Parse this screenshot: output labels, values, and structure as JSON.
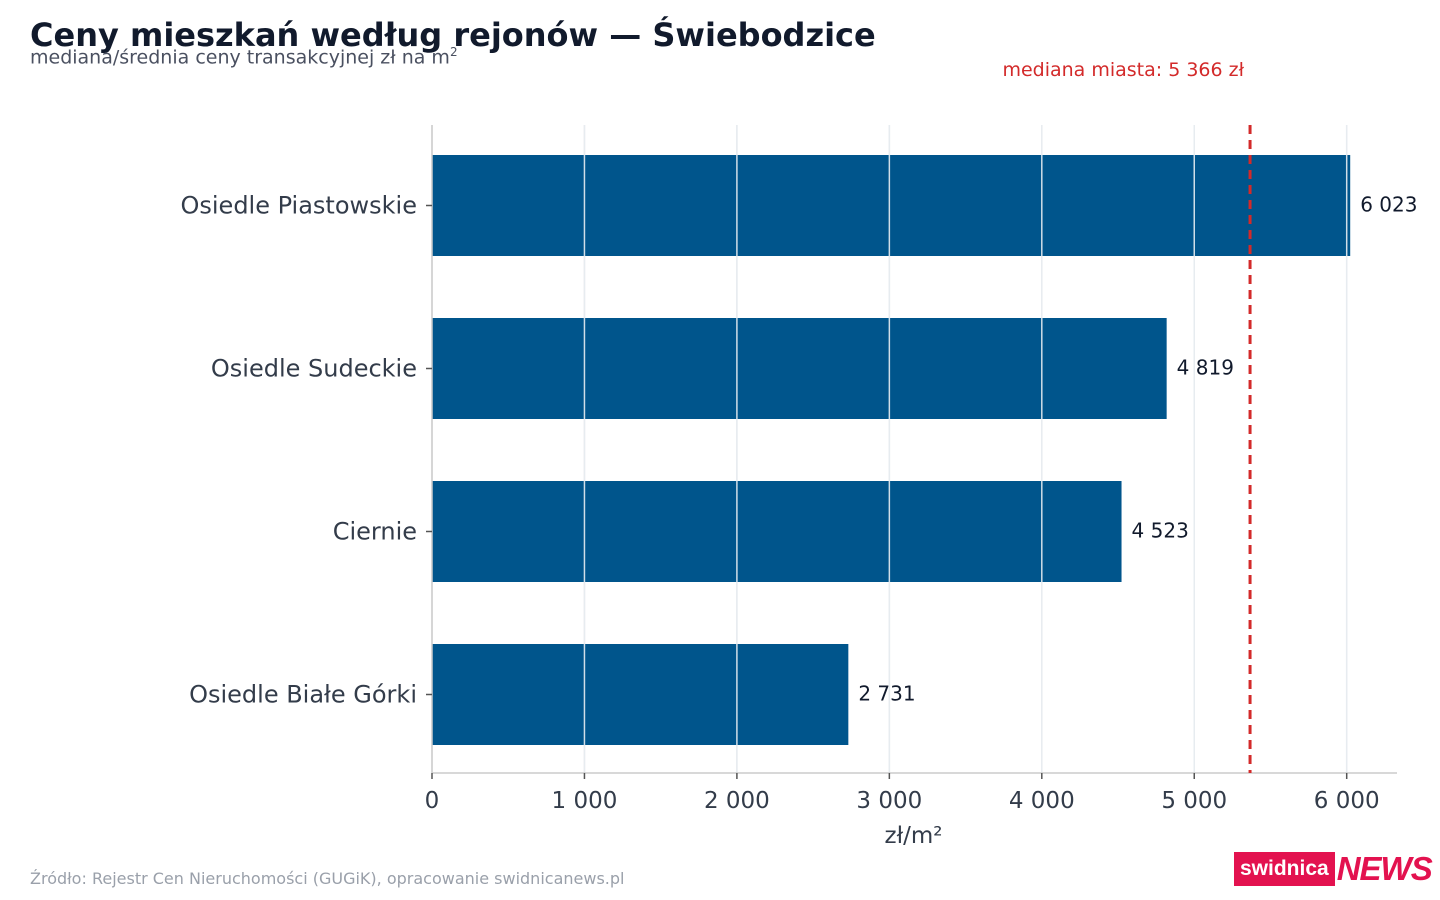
{
  "title": "Ceny mieszkań według rejonów — Świebodzice",
  "subtitle": "mediana/średnia ceny transakcyjnej zł na m",
  "subtitle_sup": "2",
  "source": "Źródło: Rejestr Cen Nieruchomości (GUGiK), opracowanie swidnicanews.pl",
  "logo": {
    "left": "swidnica",
    "right": "NEWS"
  },
  "colors": {
    "bar": "#00558c",
    "median": "#d32a2a",
    "grid": "#e6e6e6",
    "brand": "#e3124f"
  },
  "chart_data": {
    "type": "bar",
    "orientation": "horizontal",
    "categories": [
      "Osiedle Piastowskie",
      "Osiedle Sudeckie",
      "Ciernie",
      "Osiedle Białe Górki"
    ],
    "values": [
      6023,
      4819,
      4523,
      2731
    ],
    "value_labels": [
      "6 023",
      "4 819",
      "4 523",
      "2 731"
    ],
    "xlabel": "zł/m²",
    "xlim": [
      0,
      6300
    ],
    "xticks": [
      0,
      1000,
      2000,
      3000,
      4000,
      5000,
      6000
    ],
    "xtick_labels": [
      "0",
      "1 000",
      "2 000",
      "3 000",
      "4 000",
      "5 000",
      "6 000"
    ],
    "grid": true,
    "reference_line": {
      "value": 5366,
      "label": "mediana miasta: 5 366 zł",
      "style": "dashed"
    }
  }
}
